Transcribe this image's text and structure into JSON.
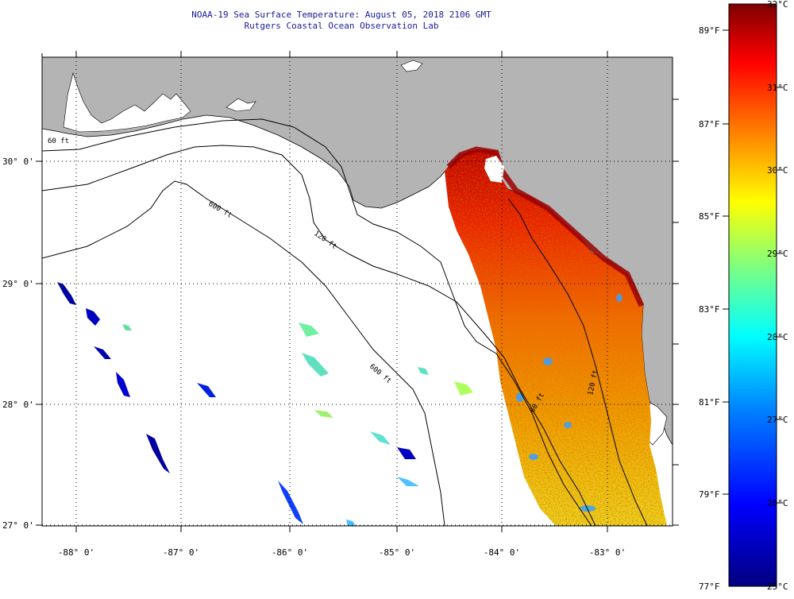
{
  "header": {
    "title": "NOAA-19 Sea Surface Temperature:  August 05, 2018 2106 GMT",
    "subtitle": "Rutgers Coastal Ocean Observation Lab"
  },
  "map": {
    "lat_labels": [
      "30° 0'",
      "29° 0'",
      "28° 0'",
      "27° 0'"
    ],
    "lon_labels": [
      "-88° 0'",
      "-87° 0'",
      "-86° 0'",
      "-85° 0'",
      "-84° 0'",
      "-83° 0'"
    ],
    "contour_labels": [
      "60 ft",
      "120 ft",
      "600 ft",
      "600 ft",
      "60 ft",
      "120 ft"
    ],
    "colors": {
      "land": "#b4b4b4",
      "ocean_nodata": "#ffffff",
      "title": "#1a1a9a"
    }
  },
  "colorbar": {
    "celsius_labels": [
      "32°C",
      "31°C",
      "30°C",
      "29°C",
      "28°C",
      "27°C",
      "26°C",
      "25°C"
    ],
    "fahrenheit_labels": [
      "89°F",
      "87°F",
      "85°F",
      "83°F",
      "81°F",
      "79°F",
      "77°F"
    ],
    "range_c": [
      25,
      32
    ],
    "palette": [
      "#00007f",
      "#0000ff",
      "#007fff",
      "#00ffff",
      "#7fff7f",
      "#ffff00",
      "#ff7f00",
      "#ff0000",
      "#7f0000"
    ]
  }
}
